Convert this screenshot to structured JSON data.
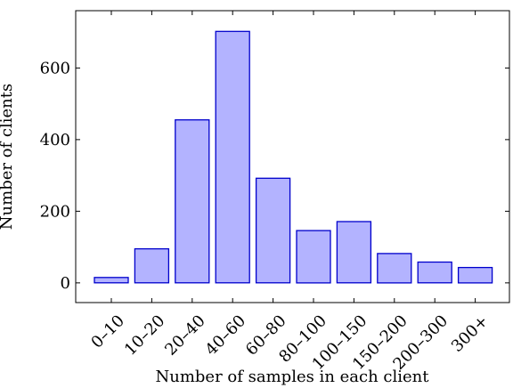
{
  "chart_data": {
    "type": "bar",
    "title": "",
    "xlabel": "Number of samples in each client",
    "ylabel": "Number of clients",
    "categories": [
      "0–10",
      "10–20",
      "20–40",
      "40–60",
      "60–80",
      "80–100",
      "100–150",
      "150–200",
      "200–300",
      "300+"
    ],
    "values": [
      15,
      95,
      455,
      702,
      292,
      146,
      171,
      82,
      58,
      43
    ],
    "ylim": [
      -55,
      760
    ],
    "yticks": [
      0,
      200,
      400,
      600
    ],
    "grid": false,
    "bar_fill": "#b3b3ff",
    "bar_stroke": "#0000cc"
  }
}
